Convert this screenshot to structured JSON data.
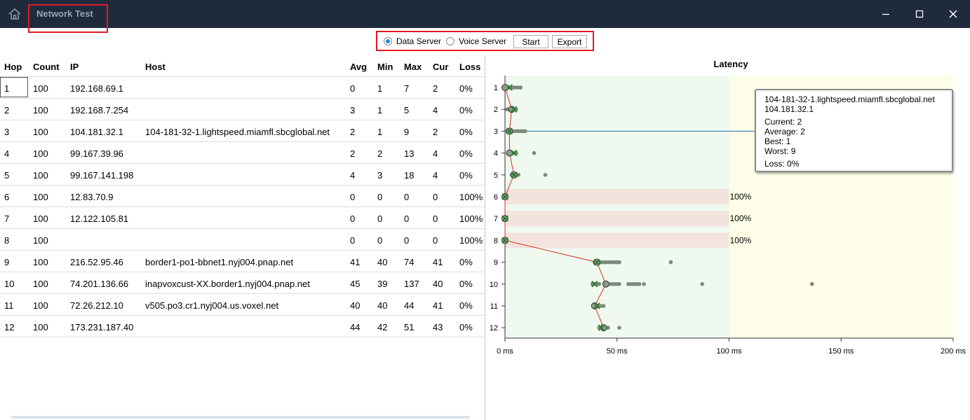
{
  "titlebar": {
    "title": "Network Test",
    "home_icon": "home-icon",
    "buttons": [
      "minimize-icon",
      "maximize-icon",
      "close-icon"
    ]
  },
  "toolbar": {
    "radio_data": "Data Server",
    "radio_voice": "Voice Server",
    "selected": "Data Server",
    "start": "Start",
    "export": "Export"
  },
  "table": {
    "headers": [
      "Hop",
      "Count",
      "IP",
      "Host",
      "Avg",
      "Min",
      "Max",
      "Cur",
      "Loss"
    ],
    "rows": [
      [
        "1",
        "100",
        "192.168.69.1",
        "",
        "0",
        "1",
        "7",
        "2",
        "0%"
      ],
      [
        "2",
        "100",
        "192.168.7.254",
        "",
        "3",
        "1",
        "5",
        "4",
        "0%"
      ],
      [
        "3",
        "100",
        "104.181.32.1",
        "104-181-32-1.lightspeed.miamfl.sbcglobal.net",
        "2",
        "1",
        "9",
        "2",
        "0%"
      ],
      [
        "4",
        "100",
        "99.167.39.96",
        "",
        "2",
        "2",
        "13",
        "4",
        "0%"
      ],
      [
        "5",
        "100",
        "99.167.141.198",
        "",
        "4",
        "3",
        "18",
        "4",
        "0%"
      ],
      [
        "6",
        "100",
        "12.83.70.9",
        "",
        "0",
        "0",
        "0",
        "0",
        "100%"
      ],
      [
        "7",
        "100",
        "12.122.105.81",
        "",
        "0",
        "0",
        "0",
        "0",
        "100%"
      ],
      [
        "8",
        "100",
        "",
        "",
        "0",
        "0",
        "0",
        "0",
        "100%"
      ],
      [
        "9",
        "100",
        "216.52.95.46",
        "border1-po1-bbnet1.nyj004.pnap.net",
        "41",
        "40",
        "74",
        "41",
        "0%"
      ],
      [
        "10",
        "100",
        "74.201.136.66",
        "inapvoxcust-XX.border1.nyj004.pnap.net",
        "45",
        "39",
        "137",
        "40",
        "0%"
      ],
      [
        "11",
        "100",
        "72.26.212.10",
        "v505.po3.cr1.nyj004.us.voxel.net",
        "40",
        "40",
        "44",
        "41",
        "0%"
      ],
      [
        "12",
        "100",
        "173.231.187.40",
        "",
        "44",
        "42",
        "51",
        "43",
        "0%"
      ]
    ]
  },
  "tooltip": {
    "host": "104-181-32-1.lightspeed.miamfl.sbcglobal.net",
    "ip": "104.181.32.1",
    "current": "Current:  2",
    "average": "Average:  2",
    "best": "Best:  1",
    "worst": "Worst:  9",
    "loss": "Loss:  0%"
  },
  "chart_data": {
    "type": "scatter",
    "title": "Latency",
    "xlim": [
      0,
      200
    ],
    "x_ticks": [
      "0 ms",
      "50 ms",
      "100 ms",
      "150 ms",
      "200 ms"
    ],
    "y_categories": [
      "1",
      "2",
      "3",
      "4",
      "5",
      "6",
      "7",
      "8",
      "9",
      "10",
      "11",
      "12"
    ],
    "zones": [
      {
        "from": 0,
        "to": 100,
        "color": "#eff9ef"
      },
      {
        "from": 100,
        "to": 200,
        "color": "#fefde7"
      }
    ],
    "loss_bars": [
      {
        "hop": 6,
        "label": "100%"
      },
      {
        "hop": 7,
        "label": "100%"
      },
      {
        "hop": 8,
        "label": "100%"
      }
    ],
    "hops": [
      {
        "hop": 1,
        "avg": 0,
        "cur": 2,
        "samples": [
          1,
          2,
          3,
          4,
          5,
          6,
          7
        ]
      },
      {
        "hop": 2,
        "avg": 3,
        "cur": 4,
        "samples": [
          1,
          2,
          3,
          4,
          5
        ]
      },
      {
        "hop": 3,
        "avg": 2,
        "cur": 2,
        "samples": [
          1,
          2,
          3,
          4,
          5,
          6,
          7,
          8,
          9
        ]
      },
      {
        "hop": 4,
        "avg": 2,
        "cur": 4,
        "samples": [
          2,
          3,
          4,
          5,
          13
        ]
      },
      {
        "hop": 5,
        "avg": 4,
        "cur": 4,
        "samples": [
          3,
          4,
          5,
          6,
          18
        ]
      },
      {
        "hop": 6,
        "avg": 0,
        "cur": 0,
        "samples": [
          0
        ]
      },
      {
        "hop": 7,
        "avg": 0,
        "cur": 0,
        "samples": [
          0
        ]
      },
      {
        "hop": 8,
        "avg": 0,
        "cur": 0,
        "samples": [
          0
        ]
      },
      {
        "hop": 9,
        "avg": 41,
        "cur": 41,
        "samples": [
          40,
          41,
          42,
          43,
          44,
          45,
          46,
          47,
          48,
          49,
          50,
          51,
          74
        ]
      },
      {
        "hop": 10,
        "avg": 45,
        "cur": 40,
        "samples": [
          39,
          40,
          41,
          42,
          46,
          47,
          48,
          49,
          50,
          51,
          55,
          56,
          57,
          58,
          59,
          60,
          62,
          88,
          137
        ]
      },
      {
        "hop": 11,
        "avg": 40,
        "cur": 41,
        "samples": [
          40,
          41,
          42,
          43,
          44
        ]
      },
      {
        "hop": 12,
        "avg": 44,
        "cur": 43,
        "samples": [
          42,
          43,
          44,
          45,
          46,
          51
        ]
      }
    ],
    "selected_hop": 3,
    "colors": {
      "avg_line": "#d9321f",
      "sample": "#7b8a7b",
      "current": "#2e7d32",
      "selection_line": "#1f6fb2",
      "loss_bar": "#f2e4dc"
    }
  }
}
